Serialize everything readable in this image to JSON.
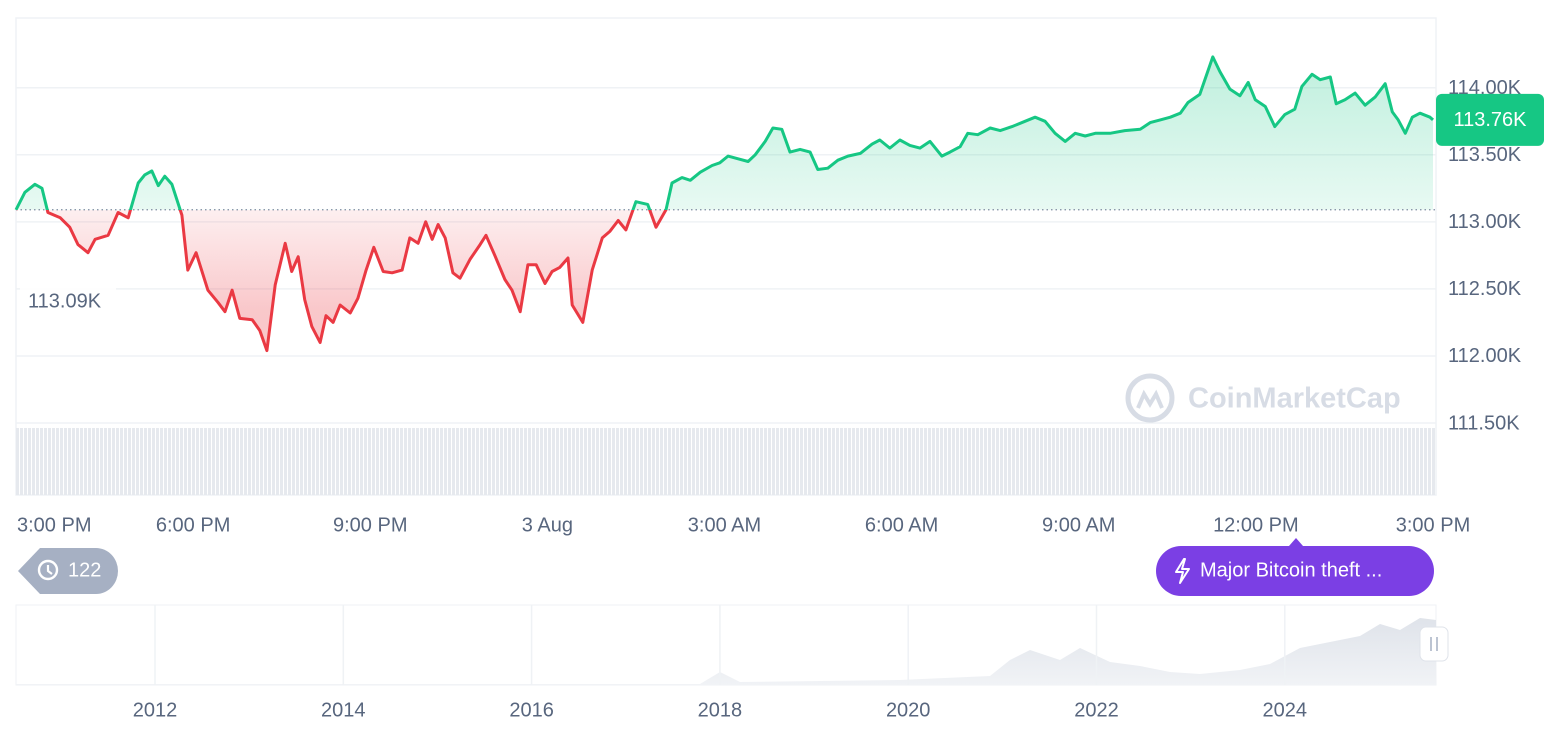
{
  "chart_data": {
    "type": "line",
    "x": [
      0.0,
      0.15,
      0.32,
      0.44,
      0.54,
      0.75,
      0.91,
      1.05,
      1.22,
      1.34,
      1.56,
      1.73,
      1.9,
      2.07,
      2.18,
      2.3,
      2.41,
      2.52,
      2.64,
      2.81,
      2.91,
      3.05,
      3.25,
      3.42,
      3.54,
      3.66,
      3.79,
      4.0,
      4.13,
      4.25,
      4.39,
      4.56,
      4.67,
      4.78,
      4.89,
      5.01,
      5.15,
      5.25,
      5.37,
      5.49,
      5.66,
      5.79,
      5.93,
      6.06,
      6.22,
      6.37,
      6.54,
      6.67,
      6.81,
      6.94,
      7.05,
      7.15,
      7.27,
      7.4,
      7.52,
      7.69,
      7.86,
      7.96,
      8.11,
      8.28,
      8.4,
      8.54,
      8.67,
      8.81,
      8.96,
      9.08,
      9.21,
      9.35,
      9.42,
      9.6,
      9.76,
      9.93,
      10.06,
      10.2,
      10.33,
      10.5,
      10.7,
      10.84,
      11.01,
      11.11,
      11.28,
      11.42,
      11.59,
      11.79,
      11.92,
      12.06,
      12.23,
      12.4,
      12.52,
      12.69,
      12.82,
      12.97,
      13.11,
      13.28,
      13.45,
      13.58,
      13.75,
      13.92,
      14.09,
      14.3,
      14.5,
      14.63,
      14.8,
      14.97,
      15.14,
      15.31,
      15.48,
      15.68,
      15.82,
      15.99,
      16.12,
      16.29,
      16.5,
      16.67,
      16.87,
      17.09,
      17.26,
      17.43,
      17.6,
      17.77,
      17.94,
      18.11,
      18.28,
      18.53,
      18.78,
      19.04,
      19.21,
      19.38,
      19.55,
      19.72,
      19.85,
      20.05,
      20.27,
      20.39,
      20.56,
      20.73,
      20.87,
      20.99,
      21.16,
      21.32,
      21.49,
      21.66,
      21.78,
      21.95,
      22.09,
      22.26,
      22.36,
      22.51,
      22.68,
      22.85,
      23.02,
      23.19,
      23.31,
      23.41,
      23.53,
      23.65,
      23.78,
      23.95,
      24.0
    ],
    "values": [
      113090,
      113220,
      113280,
      113250,
      113070,
      113030,
      112960,
      112830,
      112770,
      112870,
      112900,
      113070,
      113030,
      113290,
      113350,
      113380,
      113270,
      113340,
      113280,
      113050,
      112640,
      112770,
      112490,
      112400,
      112330,
      112490,
      112280,
      112270,
      112190,
      112040,
      112530,
      112840,
      112630,
      112740,
      112420,
      112220,
      112100,
      112300,
      112250,
      112380,
      112320,
      112430,
      112640,
      112810,
      112630,
      112620,
      112640,
      112880,
      112840,
      113000,
      112870,
      112980,
      112880,
      112620,
      112580,
      112720,
      112830,
      112900,
      112750,
      112570,
      112490,
      112330,
      112680,
      112680,
      112540,
      112630,
      112660,
      112730,
      112380,
      112250,
      112640,
      112880,
      112930,
      113010,
      112940,
      113150,
      113130,
      112960,
      113090,
      113290,
      113330,
      113310,
      113370,
      113420,
      113440,
      113490,
      113470,
      113450,
      113500,
      113600,
      113700,
      113690,
      113520,
      113540,
      113520,
      113390,
      113400,
      113460,
      113490,
      113510,
      113580,
      113610,
      113550,
      113610,
      113570,
      113550,
      113600,
      113490,
      113520,
      113560,
      113660,
      113650,
      113700,
      113680,
      113710,
      113750,
      113780,
      113750,
      113660,
      113600,
      113660,
      113640,
      113660,
      113660,
      113680,
      113690,
      113740,
      113760,
      113780,
      113810,
      113890,
      113950,
      114230,
      114120,
      113990,
      113940,
      114040,
      113910,
      113860,
      113710,
      113800,
      113840,
      114010,
      114100,
      114060,
      114080,
      113880,
      113910,
      113960,
      113870,
      113930,
      114030,
      113820,
      113760,
      113660,
      113780,
      113810,
      113780,
      113760
    ],
    "colors": {
      "up": "#16c784",
      "down": "#ea3943"
    },
    "baseline": {
      "value": 113090,
      "label": "113.09K"
    },
    "current_price": {
      "value": 113760,
      "label": "113.76K"
    },
    "xlim": [
      0,
      24
    ],
    "xticks": [
      {
        "value": 0,
        "label": "3:00 PM"
      },
      {
        "value": 3,
        "label": "6:00 PM"
      },
      {
        "value": 6,
        "label": "9:00 PM"
      },
      {
        "value": 9,
        "label": "3 Aug"
      },
      {
        "value": 12,
        "label": "3:00 AM"
      },
      {
        "value": 15,
        "label": "6:00 AM"
      },
      {
        "value": 18,
        "label": "9:00 AM"
      },
      {
        "value": 21,
        "label": "12:00 PM"
      },
      {
        "value": 24,
        "label": "3:00 PM"
      }
    ],
    "ylim": [
      111500,
      114520
    ],
    "yticks": [
      {
        "value": 114000,
        "label": "114.00K"
      },
      {
        "value": 113500,
        "label": "113.50K"
      },
      {
        "value": 113000,
        "label": "113.00K"
      },
      {
        "value": 112500,
        "label": "112.50K"
      },
      {
        "value": 112000,
        "label": "112.00K"
      },
      {
        "value": 111500,
        "label": "111.50K"
      }
    ],
    "grid": true
  },
  "watermark": "CoinMarketCap",
  "history_badge": "122",
  "event": "Major Bitcoin theft ...",
  "navigator": {
    "years": [
      2012,
      2014,
      2016,
      2018,
      2020,
      2022,
      2024
    ]
  }
}
